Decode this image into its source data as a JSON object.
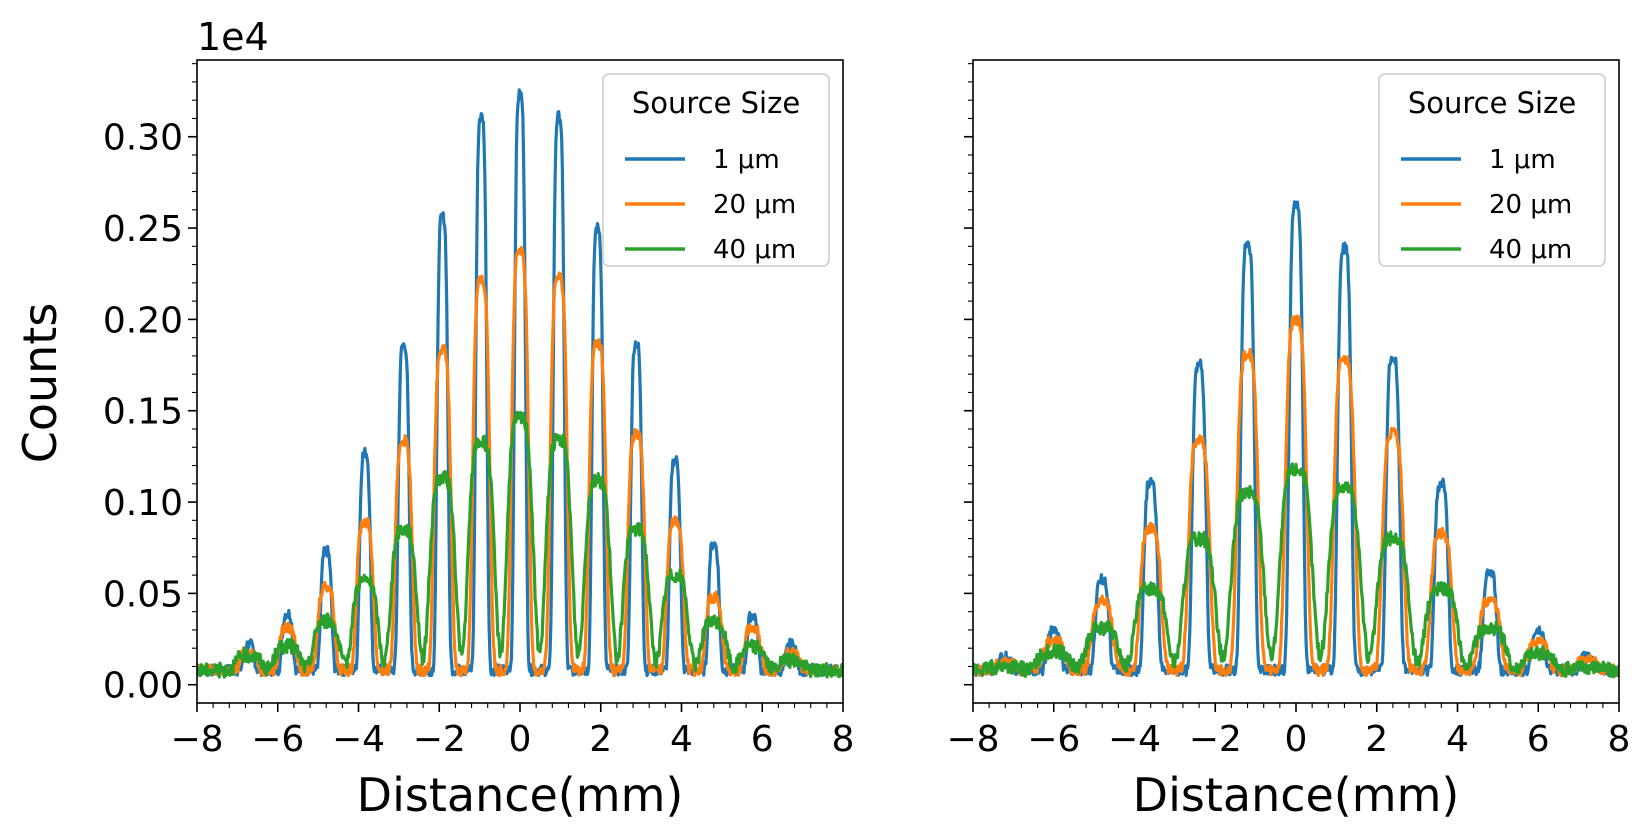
{
  "chart_data": [
    {
      "type": "line",
      "panel": "left",
      "xlabel": "Distance(mm)",
      "ylabel": "Counts",
      "y_offset_text": "1e4",
      "xlim": [
        -8,
        8
      ],
      "ylim": [
        -0.01,
        0.342
      ],
      "xticks": [
        -8,
        -6,
        -4,
        -2,
        0,
        2,
        4,
        6,
        8
      ],
      "xtick_labels": [
        "−8",
        "−6",
        "−4",
        "−2",
        "0",
        "2",
        "4",
        "6",
        "8"
      ],
      "yticks": [
        0.0,
        0.05,
        0.1,
        0.15,
        0.2,
        0.25,
        0.3
      ],
      "ytick_labels": [
        "0.00",
        "0.05",
        "0.10",
        "0.15",
        "0.20",
        "0.25",
        "0.30"
      ],
      "legend_title": "Source Size",
      "legend_position": "top-right",
      "fringe_spacing_mm": 0.96,
      "peak_positions_mm": [
        -6.72,
        -5.76,
        -4.8,
        -3.84,
        -2.88,
        -1.92,
        -0.96,
        0,
        0.96,
        1.92,
        2.88,
        3.84,
        4.8,
        5.76,
        6.72
      ],
      "series": [
        {
          "name": "1 μm",
          "color": "#1f77b4",
          "baseline": 0.008,
          "peak_values": [
            0.022,
            0.039,
            0.073,
            0.127,
            0.186,
            0.256,
            0.311,
            0.323,
            0.311,
            0.25,
            0.187,
            0.123,
            0.077,
            0.038,
            0.022
          ]
        },
        {
          "name": "20 μm",
          "color": "#ff7f0e",
          "baseline": 0.008,
          "peak_values": [
            0.018,
            0.031,
            0.054,
            0.089,
            0.134,
            0.183,
            0.221,
            0.237,
            0.223,
            0.187,
            0.137,
            0.09,
            0.048,
            0.031,
            0.017
          ]
        },
        {
          "name": "40 μm",
          "color": "#2ca02c",
          "baseline": 0.008,
          "peak_values": [
            0.016,
            0.021,
            0.035,
            0.057,
            0.085,
            0.113,
            0.133,
            0.146,
            0.134,
            0.112,
            0.085,
            0.06,
            0.034,
            0.021,
            0.013
          ]
        }
      ]
    },
    {
      "type": "line",
      "panel": "right",
      "xlabel": "Distance(mm)",
      "xlim": [
        -8,
        8
      ],
      "ylim": [
        -0.01,
        0.342
      ],
      "xticks": [
        -8,
        -6,
        -4,
        -2,
        0,
        2,
        4,
        6,
        8
      ],
      "xtick_labels": [
        "−8",
        "−6",
        "−4",
        "−2",
        "0",
        "2",
        "4",
        "6",
        "8"
      ],
      "legend_title": "Source Size",
      "legend_position": "top-right",
      "fringe_spacing_mm": 1.2,
      "peak_positions_mm": [
        -7.2,
        -6.0,
        -4.8,
        -3.6,
        -2.4,
        -1.2,
        0,
        1.2,
        2.4,
        3.6,
        4.8,
        6.0,
        7.2
      ],
      "series": [
        {
          "name": "1 μm",
          "color": "#1f77b4",
          "baseline": 0.008,
          "peak_values": [
            0.015,
            0.029,
            0.058,
            0.111,
            0.175,
            0.241,
            0.263,
            0.239,
            0.18,
            0.11,
            0.061,
            0.029,
            0.015
          ]
        },
        {
          "name": "20 μm",
          "color": "#ff7f0e",
          "baseline": 0.008,
          "peak_values": [
            0.012,
            0.024,
            0.046,
            0.086,
            0.134,
            0.181,
            0.2,
            0.178,
            0.138,
            0.083,
            0.046,
            0.023,
            0.013
          ]
        },
        {
          "name": "40 μm",
          "color": "#2ca02c",
          "baseline": 0.008,
          "peak_values": [
            0.01,
            0.018,
            0.031,
            0.053,
            0.08,
            0.105,
            0.118,
            0.108,
            0.08,
            0.053,
            0.031,
            0.017,
            0.01
          ]
        }
      ]
    }
  ]
}
